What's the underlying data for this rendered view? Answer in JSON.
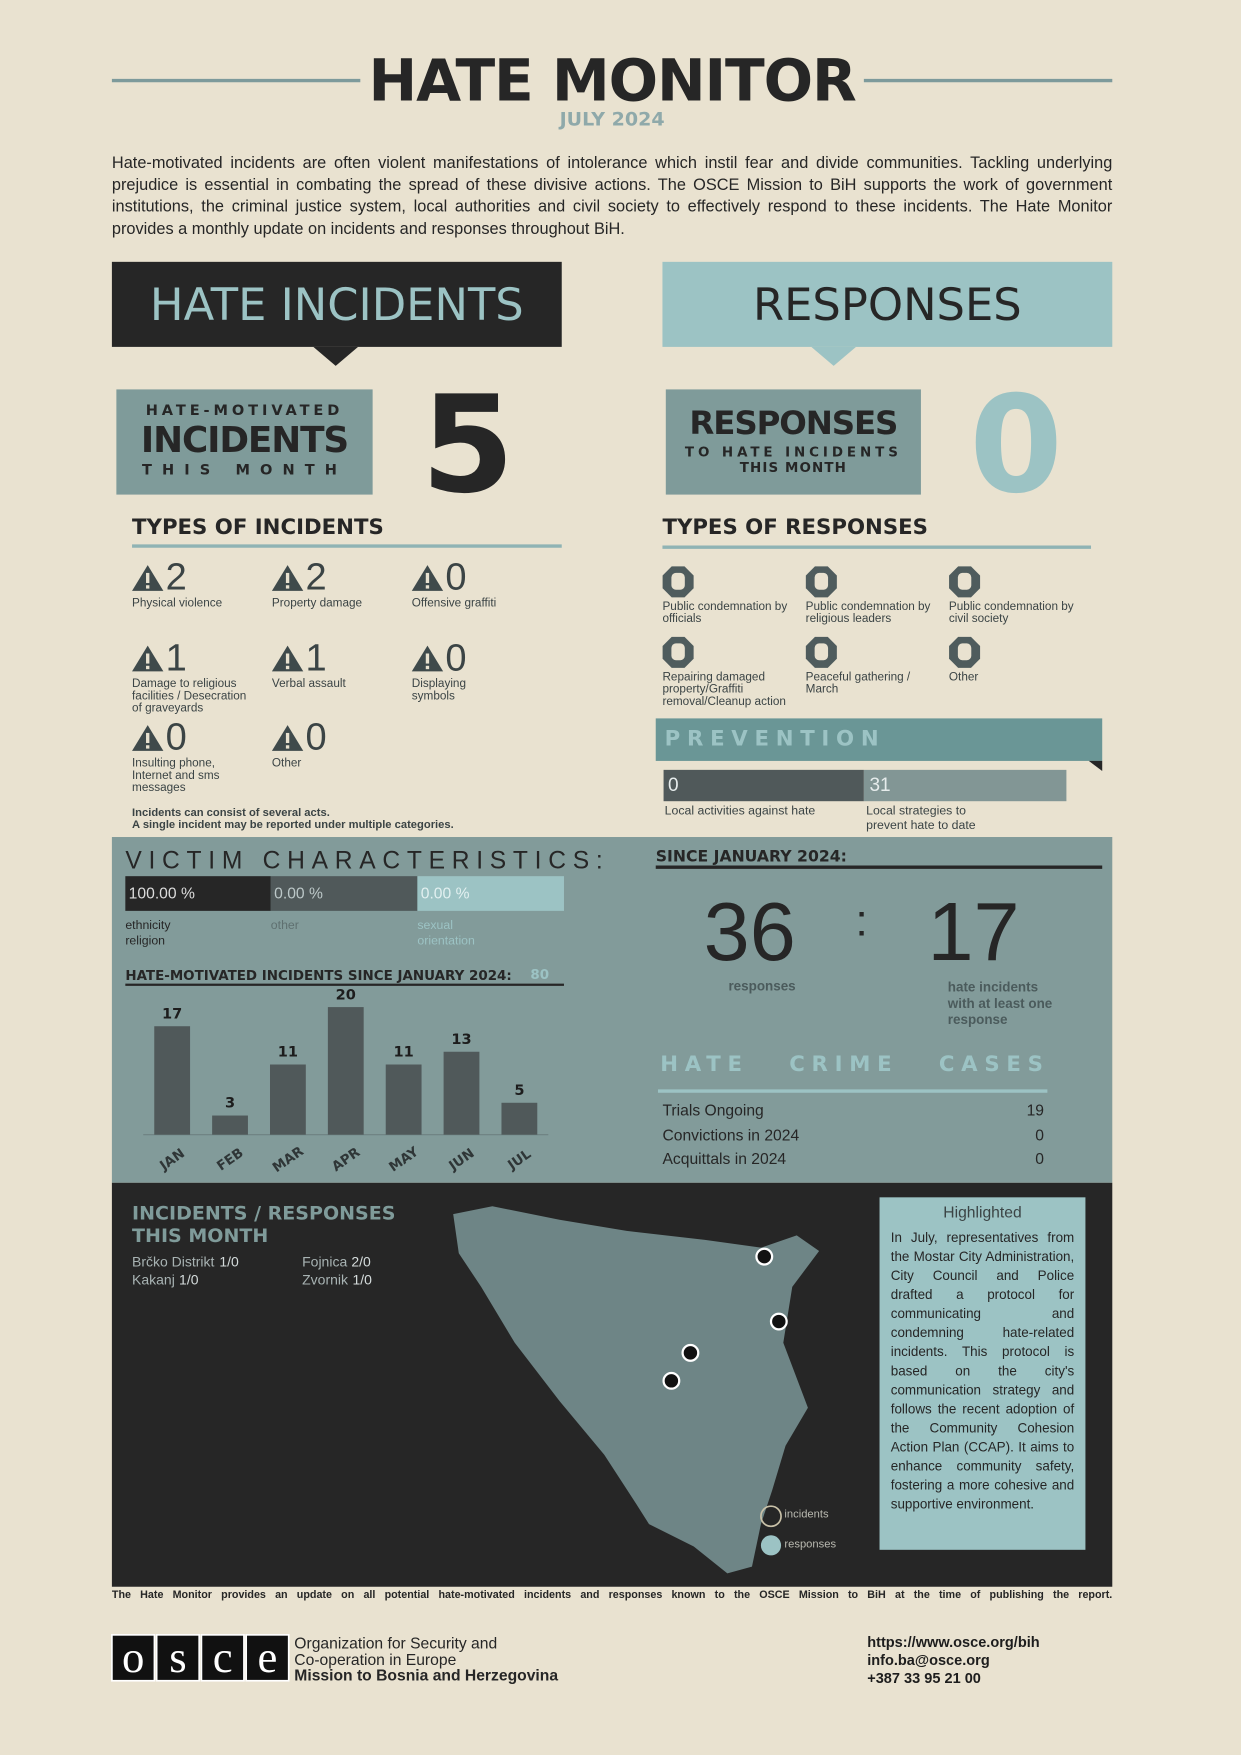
{
  "header": {
    "title": "HATE MONITOR",
    "subtitle": "JULY 2024",
    "intro": "Hate-motivated incidents are often violent manifestations of intolerance which instil fear and divide communities. Tackling underlying prejudice is essential in combating the spread of these divisive actions. The OSCE Mission to BiH supports the work of government institutions, the criminal justice system, local authorities and civil society to effectively respond to these incidents. The Hate Monitor provides a monthly update on incidents and responses throughout BiH."
  },
  "incidents": {
    "heading": "HATE INCIDENTS",
    "box": [
      "HATE-MOTIVATED",
      "INCIDENTS",
      "THIS MONTH"
    ],
    "count": 5,
    "types_title": "TYPES OF INCIDENTS",
    "types": [
      {
        "count": 2,
        "label": "Physical violence"
      },
      {
        "count": 2,
        "label": "Property damage"
      },
      {
        "count": 0,
        "label": "Offensive graffiti"
      },
      {
        "count": 1,
        "label": "Damage to religious facilities / Desecration of graveyards"
      },
      {
        "count": 1,
        "label": "Verbal assault"
      },
      {
        "count": 0,
        "label": "Displaying symbols"
      },
      {
        "count": 0,
        "label": "Insulting phone, Internet and sms messages"
      },
      {
        "count": 0,
        "label": "Other"
      }
    ],
    "note": [
      "Incidents can consist of several acts.",
      "A single incident may be reported under multiple categories."
    ]
  },
  "responses": {
    "heading": "RESPONSES",
    "box": [
      "RESPONSES",
      "TO HATE INCIDENTS",
      "THIS MONTH"
    ],
    "count": 0,
    "types_title": "TYPES OF RESPONSES",
    "types": [
      "Public condemnation by officials",
      "Public condemnation by religious leaders",
      "Public condemnation by civil society",
      "Repairing damaged property/Graffiti removal/Cleanup action",
      "Peaceful gathering / March",
      "Other"
    ]
  },
  "prevention": {
    "title": "PREVENTION",
    "items": [
      {
        "value": 0,
        "label": "Local activities against hate"
      },
      {
        "value": 31,
        "label": "Local strategies to prevent hate to date"
      }
    ]
  },
  "victims": {
    "title": "VICTIM CHARACTERISTICS:",
    "items": [
      {
        "percent": "100.00 %",
        "label": "ethnicity religion"
      },
      {
        "percent": "0.00 %",
        "label": "other"
      },
      {
        "percent": "0.00 %",
        "label": "sexual orientation"
      }
    ]
  },
  "since": {
    "title": "SINCE JANUARY 2024:",
    "responses": 36,
    "responses_label": "responses",
    "separator": ":",
    "incidents": 17,
    "incidents_label": "hate incidents with at least one response"
  },
  "cases": {
    "title": "HATE CRIME CASES",
    "rows": [
      {
        "label": "Trials Ongoing",
        "value": 19
      },
      {
        "label": "Convictions in 2024",
        "value": 0
      },
      {
        "label": "Acquittals in 2024",
        "value": 0
      }
    ]
  },
  "chart_data": {
    "type": "bar",
    "title": "HATE-MOTIVATED INCIDENTS SINCE JANUARY 2024:",
    "total": 80,
    "categories": [
      "JAN",
      "FEB",
      "MAR",
      "APR",
      "MAY",
      "JUN",
      "JUL"
    ],
    "values": [
      17,
      3,
      11,
      20,
      11,
      13,
      5
    ],
    "color": "#50595a",
    "ylim": [
      0,
      20
    ]
  },
  "map": {
    "title": "INCIDENTS / RESPONSES THIS MONTH",
    "places": [
      {
        "name": "Brčko Distrikt",
        "value": "1/0"
      },
      {
        "name": "Fojnica",
        "value": "2/0"
      },
      {
        "name": "Kakanj",
        "value": "1/0"
      },
      {
        "name": "Zvornik",
        "value": "1/0"
      }
    ],
    "legend": [
      "incidents",
      "responses"
    ]
  },
  "highlight": {
    "title": "Highlighted",
    "text": "In July, representatives from the Mostar City Administration, City Council and Police drafted a protocol for communicating and condemning hate-related incidents. This protocol is based on the city's communication strategy and follows the recent adoption of the Community Cohesion Action Plan (CCAP). It aims to enhance community safety, fostering a more cohesive and supportive environment."
  },
  "footer": {
    "disclaimer": "The Hate Monitor provides an update on all potential hate-motivated incidents and responses known to the OSCE Mission to BiH at the time of publishing the report.",
    "logo": [
      "o",
      "s",
      "c",
      "e"
    ],
    "org": [
      "Organization for Security and",
      "Co-operation in Europe",
      "Mission to Bosnia and Herzegovina"
    ],
    "contacts": [
      "https://www.osce.org/bih",
      "info.ba@osce.org",
      "+387 33 95 21 00"
    ]
  }
}
